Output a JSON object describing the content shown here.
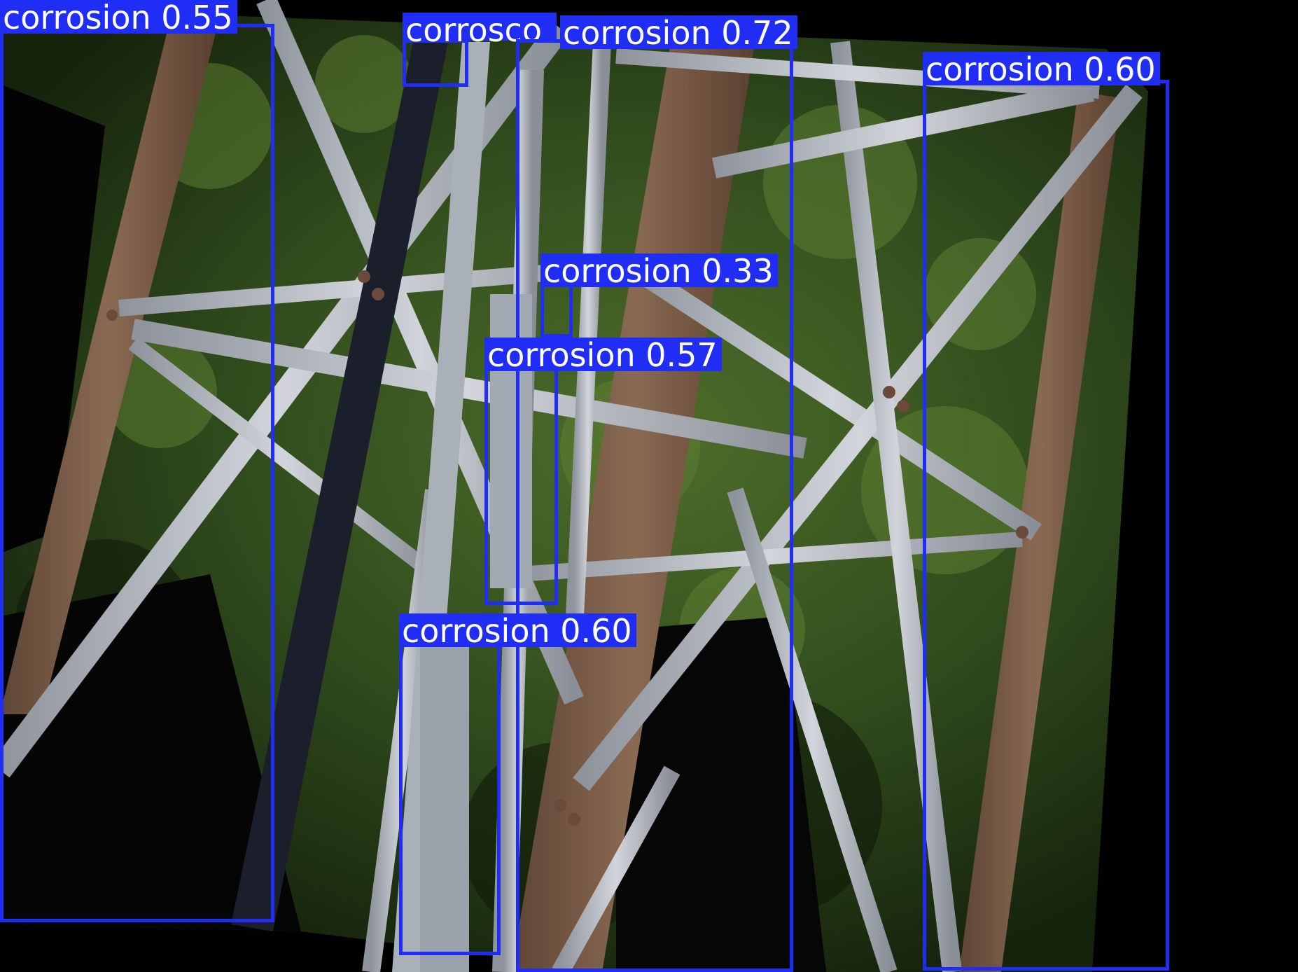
{
  "image": {
    "description_icon": "steel-lattice-tower-photo",
    "background_color": "#000000",
    "foliage_colors": [
      "#2f4a1c",
      "#4f6e2a",
      "#1e3012"
    ],
    "steel_color": "#b9bcc4",
    "rust_color": "#7a5a44"
  },
  "detection": {
    "box_color": "#1f2df5",
    "text_color": "#ffffff",
    "detections": [
      {
        "label": "corrosion",
        "confidence": "0.55",
        "text": "corrosion 0.55"
      },
      {
        "label": "corrosion",
        "confidence": "",
        "text": "corrosco"
      },
      {
        "label": "corrosion",
        "confidence": "0.72",
        "text": "corrosion 0.72"
      },
      {
        "label": "corrosion",
        "confidence": "0.60",
        "text": "corrosion 0.60"
      },
      {
        "label": "corrosion",
        "confidence": "0.33",
        "text": "corrosion 0.33"
      },
      {
        "label": "corrosion",
        "confidence": "0.57",
        "text": "corrosion 0.57"
      },
      {
        "label": "corrosion",
        "confidence": "0.60",
        "text": "corrosion 0.60"
      }
    ]
  }
}
